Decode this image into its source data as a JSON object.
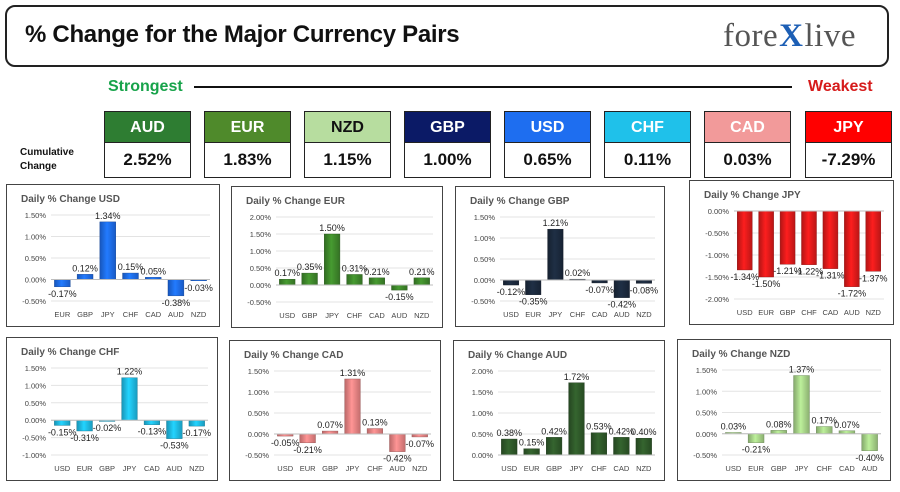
{
  "header": {
    "title": "% Change for the Major Currency Pairs",
    "logo": {
      "left": "fore",
      "mark": "X",
      "right": "live"
    }
  },
  "labels": {
    "strongest": "Strongest",
    "weakest": "Weakest",
    "cumulative": "Cumulative Change"
  },
  "colors": {
    "strongest": "#17a34a",
    "weakest": "#d61b1b",
    "AUD": "#2e7d32",
    "EUR": "#4f8a2b",
    "NZD": "#b7dd9f",
    "GBP": "#0b1a66",
    "USD": "#1e6ef0",
    "CHF": "#1fc1ea",
    "CAD": "#f29a9a",
    "JPY": "#ff0000"
  },
  "tiles": [
    {
      "currency": "AUD",
      "value": "2.52%",
      "bg": "#2e7d32",
      "fg": "#ffffff"
    },
    {
      "currency": "EUR",
      "value": "1.83%",
      "bg": "#4f8a2b",
      "fg": "#ffffff"
    },
    {
      "currency": "NZD",
      "value": "1.15%",
      "bg": "#b7dd9f",
      "fg": "#111111"
    },
    {
      "currency": "GBP",
      "value": "1.00%",
      "bg": "#0b1a66",
      "fg": "#ffffff"
    },
    {
      "currency": "USD",
      "value": "0.65%",
      "bg": "#1e6ef0",
      "fg": "#ffffff"
    },
    {
      "currency": "CHF",
      "value": "0.11%",
      "bg": "#1fc1ea",
      "fg": "#ffffff"
    },
    {
      "currency": "CAD",
      "value": "0.03%",
      "bg": "#f29a9a",
      "fg": "#ffffff"
    },
    {
      "currency": "JPY",
      "value": "-7.29%",
      "bg": "#ff0000",
      "fg": "#ffffff"
    }
  ],
  "chart_data": [
    {
      "type": "bar",
      "title": "Daily % Change USD",
      "color": "#1e6ef0",
      "categories": [
        "EUR",
        "GBP",
        "JPY",
        "CHF",
        "CAD",
        "AUD",
        "NZD"
      ],
      "values": [
        -0.17,
        0.12,
        1.34,
        0.15,
        0.05,
        -0.38,
        -0.03
      ],
      "labels": [
        "-0.17%",
        "0.12%",
        "1.34%",
        "0.15%",
        "0.05%",
        "-0.38%",
        "-0.03%"
      ],
      "yticks": [
        -0.5,
        0,
        0.5,
        1.0,
        1.5
      ],
      "ytick_labels": [
        "-0.50%",
        "0.00%",
        "0.50%",
        "1.00%",
        "1.50%"
      ],
      "ylim": [
        -0.5,
        1.5
      ]
    },
    {
      "type": "bar",
      "title": "Daily % Change EUR",
      "color": "#3f8a2c",
      "categories": [
        "USD",
        "GBP",
        "JPY",
        "CHF",
        "CAD",
        "AUD",
        "NZD"
      ],
      "values": [
        0.17,
        0.35,
        1.5,
        0.31,
        0.21,
        -0.15,
        0.21
      ],
      "labels": [
        "0.17%",
        "0.35%",
        "1.50%",
        "0.31%",
        "0.21%",
        "-0.15%",
        "0.21%"
      ],
      "yticks": [
        -0.5,
        0,
        0.5,
        1.0,
        1.5,
        2.0
      ],
      "ytick_labels": [
        "-0.50%",
        "0.00%",
        "0.50%",
        "1.00%",
        "1.50%",
        "2.00%"
      ],
      "ylim": [
        -0.5,
        2.0
      ]
    },
    {
      "type": "bar",
      "title": "Daily % Change GBP",
      "color": "#1c2a3e",
      "categories": [
        "USD",
        "EUR",
        "JPY",
        "CHF",
        "CAD",
        "AUD",
        "NZD"
      ],
      "values": [
        -0.12,
        -0.35,
        1.21,
        0.02,
        -0.07,
        -0.42,
        -0.08
      ],
      "labels": [
        "-0.12%",
        "-0.35%",
        "1.21%",
        "0.02%",
        "-0.07%",
        "-0.42%",
        "-0.08%"
      ],
      "yticks": [
        -0.5,
        0,
        0.5,
        1.0,
        1.5
      ],
      "ytick_labels": [
        "-0.50%",
        "0.00%",
        "0.50%",
        "1.00%",
        "1.50%"
      ],
      "ylim": [
        -0.5,
        1.5
      ]
    },
    {
      "type": "bar",
      "title": "Daily % Change JPY",
      "color": "#e21b1b",
      "categories": [
        "USD",
        "EUR",
        "GBP",
        "CHF",
        "CAD",
        "AUD",
        "NZD"
      ],
      "values": [
        -1.34,
        -1.5,
        -1.21,
        -1.22,
        -1.31,
        -1.72,
        -1.37
      ],
      "labels": [
        "-1.34%",
        "-1.50%",
        "-1.21%",
        "-1.22%",
        "-1.31%",
        "-1.72%",
        "-1.37%"
      ],
      "yticks": [
        -2.0,
        -1.5,
        -1.0,
        -0.5,
        0
      ],
      "ytick_labels": [
        "-2.00%",
        "-1.50%",
        "-1.00%",
        "-0.50%",
        "0.00%"
      ],
      "ylim": [
        -2.0,
        0
      ]
    },
    {
      "type": "bar",
      "title": "Daily % Change CHF",
      "color": "#1fbde8",
      "categories": [
        "USD",
        "EUR",
        "GBP",
        "JPY",
        "CAD",
        "AUD",
        "NZD"
      ],
      "values": [
        -0.15,
        -0.31,
        -0.02,
        1.22,
        -0.13,
        -0.53,
        -0.17
      ],
      "labels": [
        "-0.15%",
        "-0.31%",
        "-0.02%",
        "1.22%",
        "-0.13%",
        "-0.53%",
        "-0.17%"
      ],
      "yticks": [
        -1.0,
        -0.5,
        0,
        0.5,
        1.0,
        1.5
      ],
      "ytick_labels": [
        "-1.00%",
        "-0.50%",
        "0.00%",
        "0.50%",
        "1.00%",
        "1.50%"
      ],
      "ylim": [
        -1.0,
        1.5
      ]
    },
    {
      "type": "bar",
      "title": "Daily % Change CAD",
      "color": "#ee8585",
      "categories": [
        "USD",
        "EUR",
        "GBP",
        "JPY",
        "CHF",
        "AUD",
        "NZD"
      ],
      "values": [
        -0.05,
        -0.21,
        0.07,
        1.31,
        0.13,
        -0.42,
        -0.07
      ],
      "labels": [
        "-0.05%",
        "-0.21%",
        "0.07%",
        "1.31%",
        "0.13%",
        "-0.42%",
        "-0.07%"
      ],
      "yticks": [
        -0.5,
        0,
        0.5,
        1.0,
        1.5
      ],
      "ytick_labels": [
        "-0.50%",
        "0.00%",
        "0.50%",
        "1.00%",
        "1.50%"
      ],
      "ylim": [
        -0.5,
        1.5
      ]
    },
    {
      "type": "bar",
      "title": "Daily % Change AUD",
      "color": "#2f5a2a",
      "categories": [
        "USD",
        "EUR",
        "GBP",
        "JPY",
        "CHF",
        "CAD",
        "NZD"
      ],
      "values": [
        0.38,
        0.15,
        0.42,
        1.72,
        0.53,
        0.42,
        0.4
      ],
      "labels": [
        "0.38%",
        "0.15%",
        "0.42%",
        "1.72%",
        "0.53%",
        "0.42%",
        "0.40%"
      ],
      "yticks": [
        0,
        0.5,
        1.0,
        1.5,
        2.0
      ],
      "ytick_labels": [
        "0.00%",
        "0.50%",
        "1.00%",
        "1.50%",
        "2.00%"
      ],
      "ylim": [
        0,
        2.0
      ]
    },
    {
      "type": "bar",
      "title": "Daily % Change NZD",
      "color": "#a9d68a",
      "categories": [
        "USD",
        "EUR",
        "GBP",
        "JPY",
        "CHF",
        "CAD",
        "AUD"
      ],
      "values": [
        0.03,
        -0.21,
        0.08,
        1.37,
        0.17,
        0.07,
        -0.4
      ],
      "labels": [
        "0.03%",
        "-0.21%",
        "0.08%",
        "1.37%",
        "0.17%",
        "0.07%",
        "-0.40%"
      ],
      "yticks": [
        -0.5,
        0,
        0.5,
        1.0,
        1.5
      ],
      "ytick_labels": [
        "-0.50%",
        "0.00%",
        "0.50%",
        "1.00%",
        "1.50%"
      ],
      "ylim": [
        -0.5,
        1.5
      ]
    }
  ]
}
